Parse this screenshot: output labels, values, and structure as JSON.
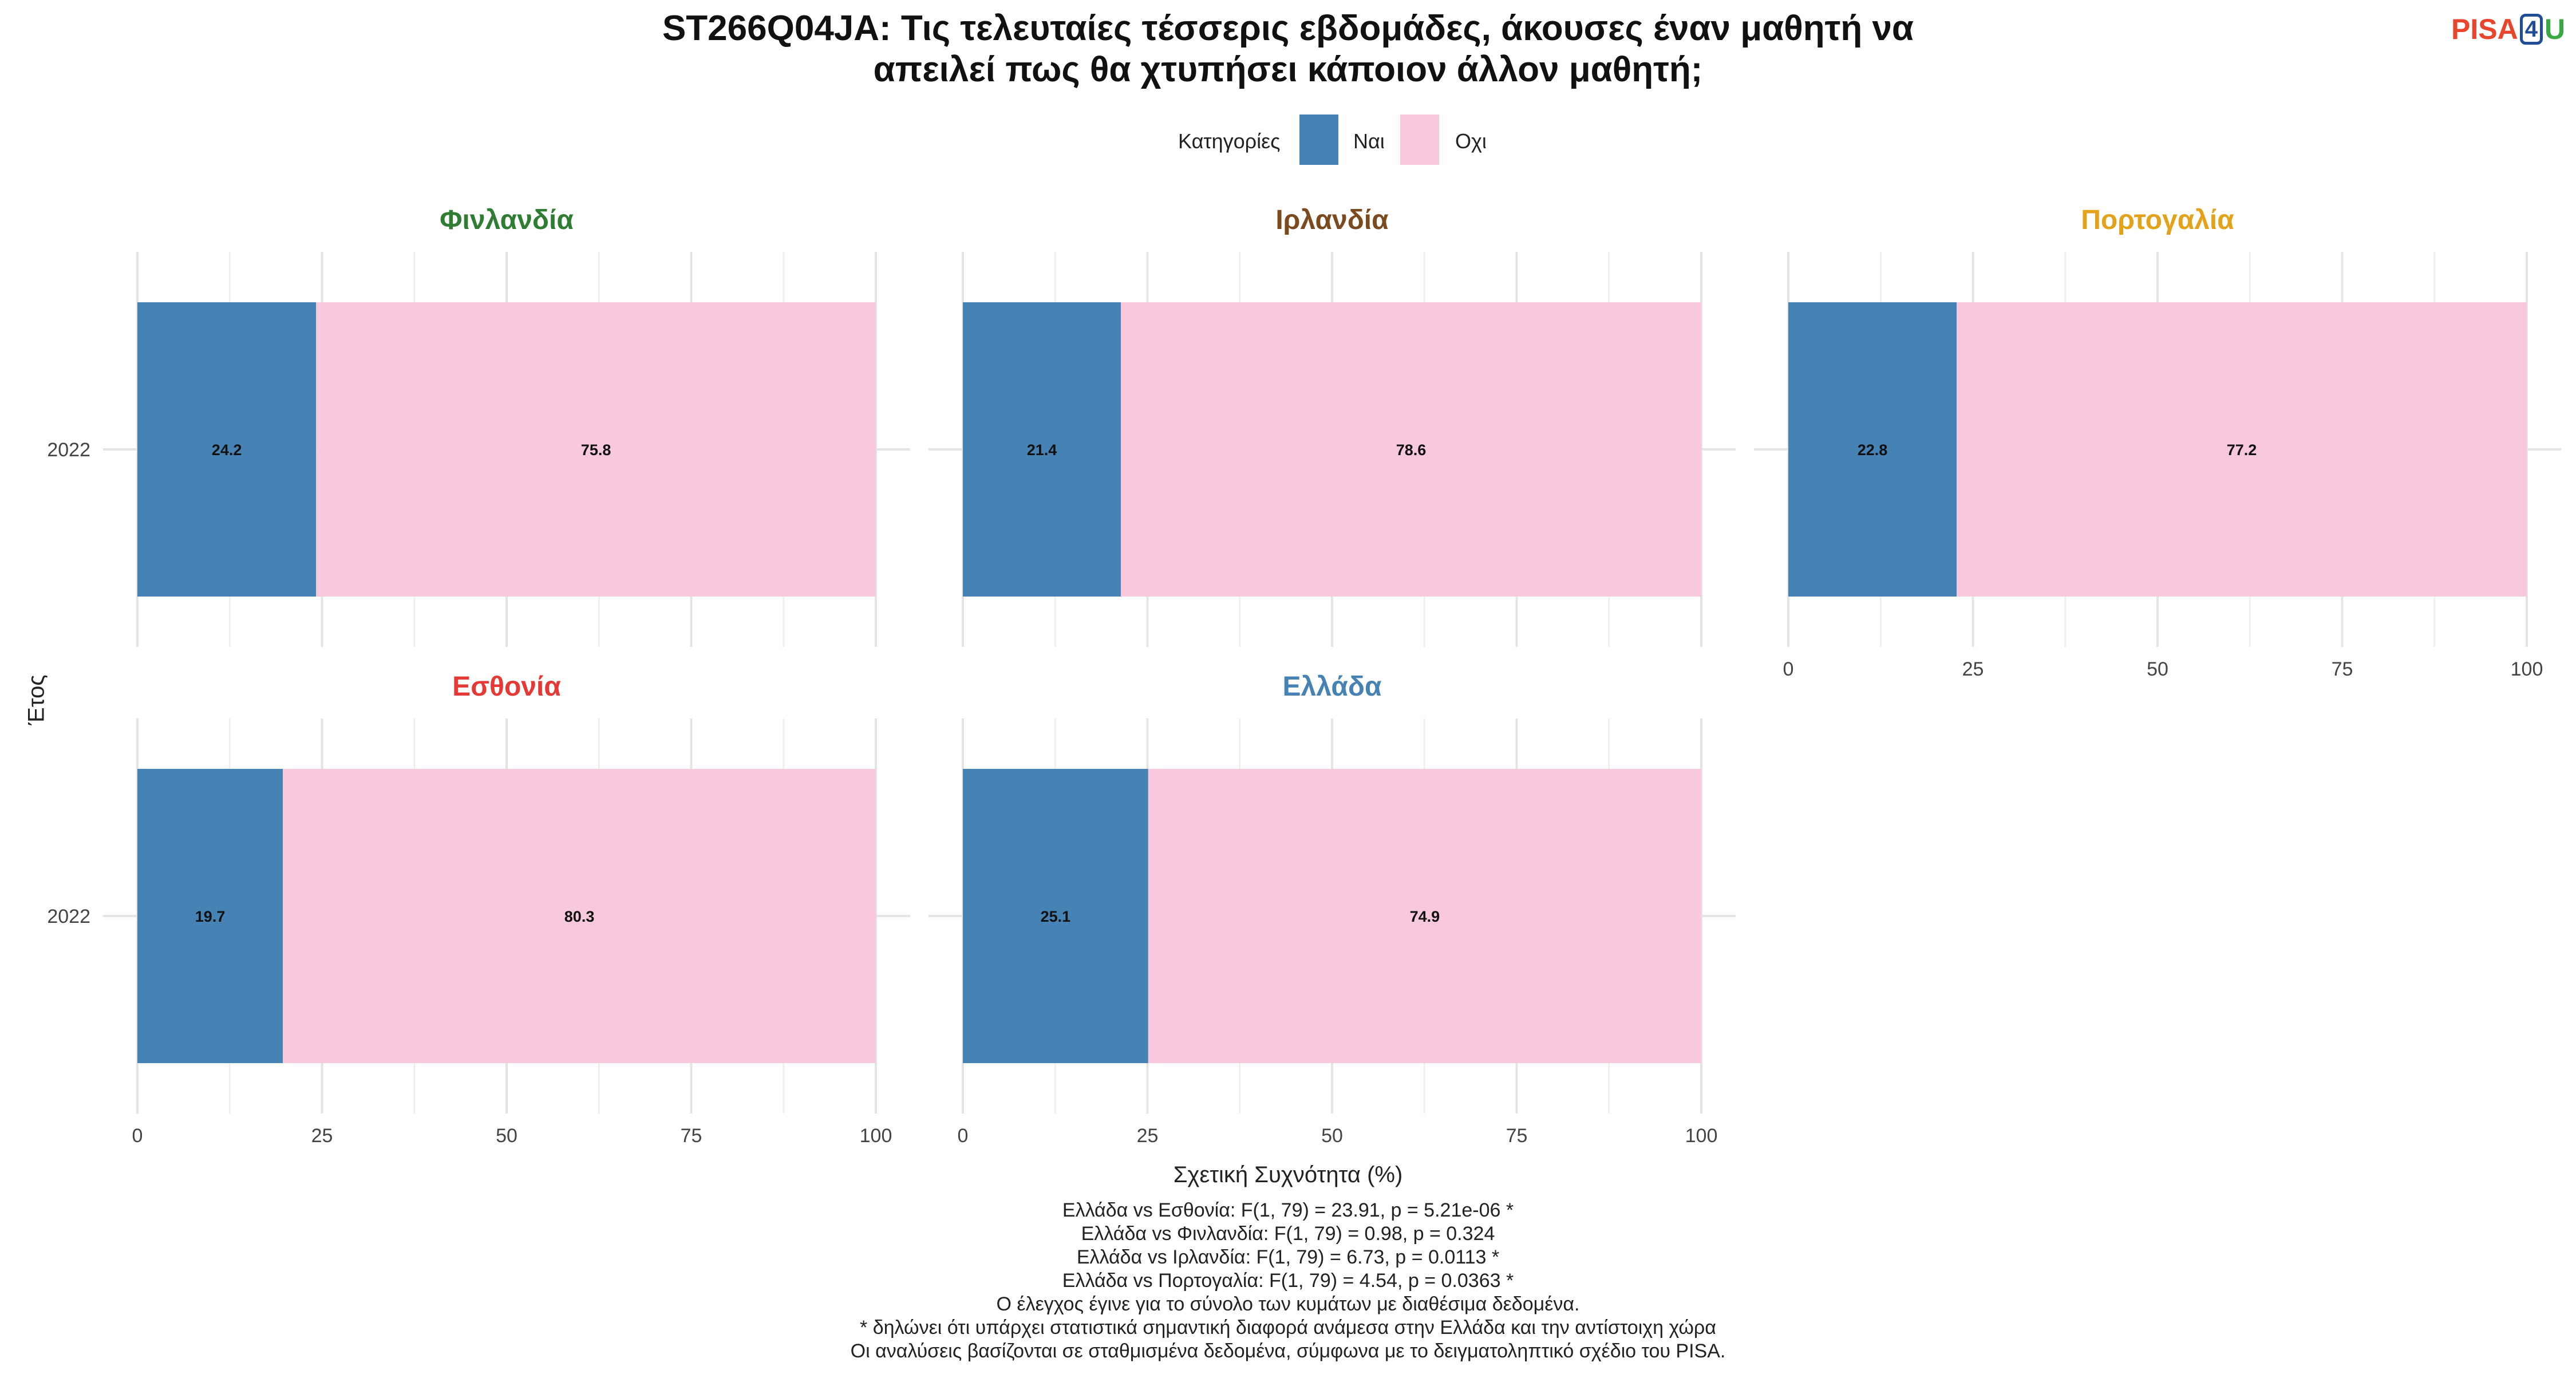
{
  "title_lines": [
    "ST266Q04JA: Τις τελευταίες τέσσερις εβδομάδες, άκουσες έναν μαθητή να",
    "απειλεί πως θα χτυπήσει κάποιον άλλον μαθητή;"
  ],
  "logo": {
    "part1": "PISA",
    "part2": "4",
    "part3": "U"
  },
  "legend": {
    "title": "Κατηγορίες",
    "entries": [
      {
        "label": "Ναι",
        "color": "#4682b4"
      },
      {
        "label": "Οχι",
        "color": "#f8c8dc"
      }
    ]
  },
  "chart_data": {
    "type": "bar",
    "orientation": "horizontal-stacked",
    "xlabel": "Σχετική Συχνότητα (%)",
    "ylabel": "Έτος",
    "xlim": [
      0,
      100
    ],
    "xticks": [
      0,
      25,
      50,
      75,
      100
    ],
    "categories": [
      "2022"
    ],
    "grid": true,
    "legend_position": "top",
    "panels": [
      {
        "name": "Φινλανδία",
        "title_color": "#2e7d32",
        "values": {
          "Ναι": [
            24.2
          ],
          "Οχι": [
            75.8
          ]
        },
        "labels": [
          "24.2",
          "75.8"
        ]
      },
      {
        "name": "Ιρλανδία",
        "title_color": "#7b4a1e",
        "values": {
          "Ναι": [
            21.4
          ],
          "Οχι": [
            78.6
          ]
        },
        "labels": [
          "21.4",
          "78.6"
        ]
      },
      {
        "name": "Πορτογαλία",
        "title_color": "#e3a21a",
        "values": {
          "Ναι": [
            22.8
          ],
          "Οχι": [
            77.2
          ]
        },
        "labels": [
          "22.8",
          "77.2"
        ]
      },
      {
        "name": "Εσθονία",
        "title_color": "#e53935",
        "values": {
          "Ναι": [
            19.7
          ],
          "Οχι": [
            80.3
          ]
        },
        "labels": [
          "19.7",
          "80.3"
        ]
      },
      {
        "name": "Ελλάδα",
        "title_color": "#4682b4",
        "values": {
          "Ναι": [
            25.1
          ],
          "Οχι": [
            74.9
          ]
        },
        "labels": [
          "25.1",
          "74.9"
        ]
      }
    ]
  },
  "notes": [
    "Ελλάδα vs Εσθονία: F(1, 79) = 23.91, p = 5.21e-06 *",
    "Ελλάδα vs Φινλανδία: F(1, 79) = 0.98, p = 0.324",
    "Ελλάδα vs Ιρλανδία: F(1, 79) = 6.73, p = 0.0113 *",
    "Ελλάδα vs Πορτογαλία: F(1, 79) = 4.54, p = 0.0363 *",
    "Ο έλεγχος έγινε για το σύνολο των κυμάτων με διαθέσιμα δεδομένα.",
    "* δηλώνει ότι υπάρχει στατιστικά σημαντική διαφορά ανάμεσα στην Ελλάδα και την αντίστοιχη χώρα",
    "Οι αναλύσεις βασίζονται σε σταθμισμένα δεδομένα, σύμφωνα με το δειγματοληπτικό σχέδιο του PISA."
  ]
}
